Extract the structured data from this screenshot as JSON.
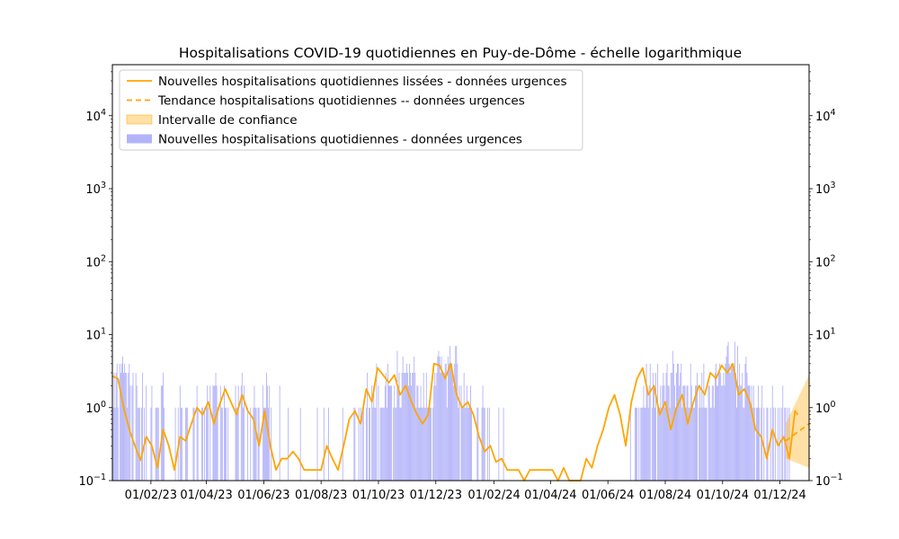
{
  "chart_data": {
    "type": "bar",
    "title": "Hospitalisations COVID-19 quotidiennes en Puy-de-Dôme - échelle logarithmique",
    "xlabel": "",
    "ylabel": "",
    "yscale": "log",
    "ylim": [
      0.1,
      50000
    ],
    "xlim": [
      "2022-12-22",
      "2025-01-01"
    ],
    "y_ticks": [
      {
        "value": 0.1,
        "base": "10",
        "exp": "−1"
      },
      {
        "value": 1,
        "base": "10",
        "exp": "0"
      },
      {
        "value": 10,
        "base": "10",
        "exp": "1"
      },
      {
        "value": 100,
        "base": "10",
        "exp": "2"
      },
      {
        "value": 1000,
        "base": "10",
        "exp": "3"
      },
      {
        "value": 10000,
        "base": "10",
        "exp": "4"
      }
    ],
    "x_ticks": [
      {
        "date": "2023-02-01",
        "label": "01/02/23"
      },
      {
        "date": "2023-04-01",
        "label": "01/04/23"
      },
      {
        "date": "2023-06-01",
        "label": "01/06/23"
      },
      {
        "date": "2023-08-01",
        "label": "01/08/23"
      },
      {
        "date": "2023-10-01",
        "label": "01/10/23"
      },
      {
        "date": "2023-12-01",
        "label": "01/12/23"
      },
      {
        "date": "2024-02-01",
        "label": "01/02/24"
      },
      {
        "date": "2024-04-01",
        "label": "01/04/24"
      },
      {
        "date": "2024-06-01",
        "label": "01/06/24"
      },
      {
        "date": "2024-08-01",
        "label": "01/08/24"
      },
      {
        "date": "2024-10-01",
        "label": "01/10/24"
      },
      {
        "date": "2024-12-01",
        "label": "01/12/24"
      }
    ],
    "grid": false,
    "legend_position": "top-left",
    "colors": {
      "smoothed": "#ffa500",
      "trend": "#ffa500",
      "confidence": "#ffa500",
      "bars": "#b3b3fa"
    },
    "legend": [
      {
        "label": "Nouvelles hospitalisations quotidiennes lissées - données urgences",
        "kind": "line"
      },
      {
        "label": "Tendance hospitalisations quotidiennes -- données urgences",
        "kind": "dashed"
      },
      {
        "label": "Intervalle de confiance",
        "kind": "fill"
      },
      {
        "label": "Nouvelles hospitalisations quotidiennes - données urgences",
        "kind": "bar"
      }
    ],
    "smoothed_series": {
      "name": "Nouvelles hospitalisations quotidiennes lissées - données urgences",
      "points": [
        [
          "2022-12-22",
          2.7
        ],
        [
          "2022-12-28",
          2.5
        ],
        [
          "2023-01-03",
          1.0
        ],
        [
          "2023-01-09",
          0.5
        ],
        [
          "2023-01-15",
          0.3
        ],
        [
          "2023-01-21",
          0.19
        ],
        [
          "2023-01-27",
          0.4
        ],
        [
          "2023-02-02",
          0.3
        ],
        [
          "2023-02-08",
          0.15
        ],
        [
          "2023-02-14",
          0.5
        ],
        [
          "2023-02-20",
          0.3
        ],
        [
          "2023-02-26",
          0.14
        ],
        [
          "2023-03-04",
          0.4
        ],
        [
          "2023-03-10",
          0.35
        ],
        [
          "2023-03-16",
          0.6
        ],
        [
          "2023-03-22",
          1.0
        ],
        [
          "2023-03-28",
          0.8
        ],
        [
          "2023-04-03",
          1.2
        ],
        [
          "2023-04-09",
          0.6
        ],
        [
          "2023-04-15",
          1.1
        ],
        [
          "2023-04-21",
          1.8
        ],
        [
          "2023-04-27",
          1.2
        ],
        [
          "2023-05-03",
          0.8
        ],
        [
          "2023-05-09",
          1.5
        ],
        [
          "2023-05-15",
          0.9
        ],
        [
          "2023-05-21",
          0.7
        ],
        [
          "2023-05-27",
          0.3
        ],
        [
          "2023-06-02",
          0.9
        ],
        [
          "2023-06-08",
          0.3
        ],
        [
          "2023-06-14",
          0.14
        ],
        [
          "2023-06-20",
          0.2
        ],
        [
          "2023-06-26",
          0.2
        ],
        [
          "2023-07-02",
          0.25
        ],
        [
          "2023-07-08",
          0.2
        ],
        [
          "2023-07-14",
          0.14
        ],
        [
          "2023-07-20",
          0.14
        ],
        [
          "2023-07-26",
          0.14
        ],
        [
          "2023-08-01",
          0.14
        ],
        [
          "2023-08-07",
          0.3
        ],
        [
          "2023-08-13",
          0.2
        ],
        [
          "2023-08-19",
          0.14
        ],
        [
          "2023-08-25",
          0.3
        ],
        [
          "2023-08-31",
          0.7
        ],
        [
          "2023-09-06",
          0.9
        ],
        [
          "2023-09-12",
          0.6
        ],
        [
          "2023-09-18",
          1.8
        ],
        [
          "2023-09-24",
          1.2
        ],
        [
          "2023-09-30",
          3.5
        ],
        [
          "2023-10-06",
          2.8
        ],
        [
          "2023-10-12",
          2.2
        ],
        [
          "2023-10-18",
          2.8
        ],
        [
          "2023-10-24",
          1.5
        ],
        [
          "2023-10-30",
          2.0
        ],
        [
          "2023-11-05",
          1.2
        ],
        [
          "2023-11-11",
          0.8
        ],
        [
          "2023-11-17",
          0.6
        ],
        [
          "2023-11-23",
          0.8
        ],
        [
          "2023-11-29",
          4.0
        ],
        [
          "2023-12-05",
          3.8
        ],
        [
          "2023-12-11",
          2.5
        ],
        [
          "2023-12-17",
          4.0
        ],
        [
          "2023-12-23",
          1.5
        ],
        [
          "2023-12-29",
          1.0
        ],
        [
          "2024-01-04",
          1.2
        ],
        [
          "2024-01-10",
          0.8
        ],
        [
          "2024-01-16",
          0.4
        ],
        [
          "2024-01-22",
          0.25
        ],
        [
          "2024-01-28",
          0.3
        ],
        [
          "2024-02-03",
          0.18
        ],
        [
          "2024-02-09",
          0.2
        ],
        [
          "2024-02-15",
          0.14
        ],
        [
          "2024-02-21",
          0.14
        ],
        [
          "2024-02-27",
          0.14
        ],
        [
          "2024-03-04",
          0.1
        ],
        [
          "2024-03-10",
          0.14
        ],
        [
          "2024-03-16",
          0.14
        ],
        [
          "2024-03-22",
          0.14
        ],
        [
          "2024-03-28",
          0.14
        ],
        [
          "2024-04-03",
          0.14
        ],
        [
          "2024-04-09",
          0.1
        ],
        [
          "2024-04-15",
          0.15
        ],
        [
          "2024-04-21",
          0.1
        ],
        [
          "2024-04-27",
          0.1
        ],
        [
          "2024-05-03",
          0.1
        ],
        [
          "2024-05-09",
          0.2
        ],
        [
          "2024-05-15",
          0.15
        ],
        [
          "2024-05-21",
          0.3
        ],
        [
          "2024-05-27",
          0.5
        ],
        [
          "2024-06-02",
          1.0
        ],
        [
          "2024-06-08",
          1.5
        ],
        [
          "2024-06-14",
          0.8
        ],
        [
          "2024-06-20",
          0.3
        ],
        [
          "2024-06-26",
          1.2
        ],
        [
          "2024-07-02",
          2.5
        ],
        [
          "2024-07-08",
          3.5
        ],
        [
          "2024-07-14",
          1.5
        ],
        [
          "2024-07-20",
          2.0
        ],
        [
          "2024-07-26",
          0.8
        ],
        [
          "2024-08-01",
          1.2
        ],
        [
          "2024-08-07",
          0.5
        ],
        [
          "2024-08-13",
          1.0
        ],
        [
          "2024-08-19",
          1.5
        ],
        [
          "2024-08-25",
          0.6
        ],
        [
          "2024-08-31",
          1.2
        ],
        [
          "2024-09-06",
          2.0
        ],
        [
          "2024-09-12",
          1.5
        ],
        [
          "2024-09-18",
          3.0
        ],
        [
          "2024-09-24",
          2.5
        ],
        [
          "2024-09-30",
          3.8
        ],
        [
          "2024-10-06",
          3.0
        ],
        [
          "2024-10-12",
          4.0
        ],
        [
          "2024-10-18",
          1.5
        ],
        [
          "2024-10-24",
          1.8
        ],
        [
          "2024-10-30",
          1.2
        ],
        [
          "2024-11-05",
          0.5
        ],
        [
          "2024-11-11",
          0.4
        ],
        [
          "2024-11-17",
          0.2
        ],
        [
          "2024-11-23",
          0.5
        ],
        [
          "2024-11-29",
          0.3
        ],
        [
          "2024-12-05",
          0.4
        ],
        [
          "2024-12-11",
          0.2
        ],
        [
          "2024-12-17",
          0.9
        ],
        [
          "2024-12-20",
          0.8
        ]
      ]
    },
    "trend": {
      "name": "Tendance hospitalisations quotidiennes -- données urgences",
      "start": [
        "2024-12-07",
        0.35
      ],
      "end": [
        "2025-01-01",
        0.6
      ],
      "ci_low_start": 0.2,
      "ci_high_start": 0.6,
      "ci_low_end": 0.15,
      "ci_high_end": 2.8
    },
    "bar_series": {
      "name": "Nouvelles hospitalisations quotidiennes - données urgences",
      "date_start": "2022-12-22",
      "date_end": "2024-12-20",
      "values": [
        3,
        1,
        3,
        1,
        3,
        4,
        1,
        0,
        4,
        3,
        4,
        5,
        3,
        4,
        3,
        3,
        1,
        3,
        4,
        2,
        0,
        2,
        3,
        0,
        0,
        3,
        2,
        1,
        1,
        1,
        0,
        1,
        3,
        0,
        1,
        0,
        2,
        0,
        0,
        0,
        0,
        1,
        2,
        0,
        0,
        0,
        1,
        1,
        1,
        1,
        0,
        0,
        2,
        2,
        3,
        1,
        0,
        0,
        0,
        0,
        0,
        0,
        0,
        0,
        0,
        0,
        0,
        1,
        0,
        0,
        1,
        0,
        2,
        1,
        1,
        0,
        0,
        0,
        1,
        1,
        1,
        0,
        0,
        0,
        0,
        0,
        1,
        1,
        0,
        0,
        2,
        1,
        0,
        0,
        0,
        1,
        1,
        0,
        1,
        0,
        1,
        2,
        1,
        0,
        2,
        0,
        0,
        2,
        2,
        2,
        3,
        2,
        1,
        0,
        0,
        2,
        1,
        1,
        0,
        2,
        1,
        1,
        0,
        1,
        0,
        0,
        0,
        0,
        0,
        0,
        0,
        2,
        1,
        1,
        2,
        0,
        0,
        2,
        3,
        1,
        2,
        0,
        0,
        0,
        1,
        0,
        0,
        1,
        0,
        0,
        1,
        2,
        1,
        1,
        0,
        1,
        1,
        0,
        0,
        0,
        2,
        1,
        1,
        1,
        3,
        2,
        1,
        2,
        0,
        1,
        0,
        0,
        0,
        0,
        0,
        0,
        0,
        0,
        2,
        0,
        0,
        0,
        0,
        0,
        0,
        0,
        0,
        1,
        0,
        0,
        0,
        0,
        0,
        0,
        0,
        0,
        0,
        0,
        0,
        0,
        1,
        0,
        0,
        0,
        0,
        0,
        0,
        0,
        0,
        0,
        0,
        0,
        0,
        0,
        0,
        0,
        0,
        0,
        1,
        0,
        0,
        0,
        0,
        0,
        0,
        1,
        0,
        0,
        0,
        0,
        1,
        0,
        0,
        0,
        0,
        0,
        0,
        0,
        0,
        0,
        0,
        0,
        0,
        0,
        0,
        1,
        0,
        0,
        0,
        0,
        0,
        0,
        0,
        0,
        0,
        0,
        0,
        1,
        1,
        0,
        0,
        0,
        1,
        0,
        1,
        0,
        1,
        1,
        0,
        0,
        1,
        3,
        0,
        1,
        1,
        0,
        2,
        1,
        2,
        1,
        1,
        4,
        0,
        2,
        0,
        1,
        1,
        1,
        1,
        1,
        2,
        3,
        1,
        4,
        2,
        2,
        2,
        2,
        0,
        1,
        2,
        1,
        1,
        6,
        2,
        3,
        1,
        1,
        3,
        5,
        3,
        3,
        3,
        4,
        3,
        2,
        4,
        3,
        2,
        3,
        3,
        5,
        3,
        1,
        2,
        2,
        1,
        1,
        2,
        1,
        1,
        3,
        1,
        1,
        3,
        1,
        1,
        1,
        1,
        1,
        0,
        1,
        2,
        3,
        2,
        3,
        5,
        6,
        5,
        3,
        5,
        3,
        3,
        3,
        4,
        4,
        1,
        5,
        4,
        7,
        4,
        4,
        3,
        2,
        4,
        7,
        7,
        4,
        1,
        2,
        0,
        2,
        1,
        1,
        3,
        1,
        1,
        2,
        1,
        1,
        1,
        2,
        1,
        0,
        0,
        0,
        0,
        0,
        1,
        1,
        0,
        0,
        0,
        1,
        2,
        1,
        1,
        0,
        0,
        1,
        0,
        1,
        0,
        0,
        0,
        0,
        0,
        0,
        0,
        0,
        0,
        1,
        0,
        0,
        0,
        0,
        1,
        0,
        0,
        0,
        0,
        0,
        0,
        0,
        0,
        0,
        0,
        0,
        0,
        0,
        0,
        0,
        0,
        0,
        0,
        0,
        0,
        0,
        0,
        0,
        0,
        0,
        0,
        0,
        0,
        0,
        0,
        0,
        0,
        0,
        0,
        0,
        0,
        0,
        0,
        0,
        0,
        0,
        0,
        0,
        0,
        0,
        0,
        0,
        0,
        0,
        0,
        0,
        0,
        0,
        0,
        0,
        0,
        0,
        0,
        0,
        0,
        0,
        0,
        0,
        0,
        0,
        0,
        0,
        0,
        0,
        0,
        0,
        0,
        0,
        0,
        0,
        0,
        0,
        0,
        0,
        0,
        0,
        0,
        0,
        0,
        0,
        0,
        0,
        0,
        0,
        0,
        0,
        0,
        0,
        0,
        0,
        0,
        0,
        0,
        0,
        0,
        0,
        0,
        0,
        0,
        0,
        0,
        0,
        0,
        0,
        0,
        0,
        0,
        0,
        0,
        0,
        0,
        0,
        0,
        0,
        0,
        0,
        0,
        0,
        0,
        0,
        0,
        0,
        0,
        0,
        0,
        0,
        0,
        0,
        0,
        1,
        0,
        0,
        0,
        0,
        1,
        1,
        1,
        0,
        1,
        0,
        1,
        1,
        1,
        2,
        1,
        1,
        4,
        2,
        1,
        2,
        4,
        0,
        1,
        3,
        2,
        1,
        3,
        0,
        4,
        1,
        1,
        2,
        1,
        2,
        3,
        2,
        1,
        3,
        4,
        2,
        2,
        1,
        3,
        3,
        6,
        4,
        2,
        1,
        3,
        4,
        4,
        2,
        3,
        4,
        1,
        2,
        2,
        2,
        1,
        2,
        2,
        1,
        1,
        4,
        2,
        1,
        1,
        1,
        2,
        2,
        3,
        0,
        1,
        2,
        1,
        3,
        1,
        4,
        1,
        1,
        1,
        0,
        2,
        2,
        1,
        1,
        2,
        2,
        1,
        3,
        4,
        2,
        2,
        3,
        4,
        3,
        2,
        2,
        3,
        2,
        4,
        5,
        7,
        8,
        4,
        3,
        4,
        4,
        4,
        3,
        8,
        3,
        1,
        7,
        2,
        4,
        2,
        2,
        3,
        1,
        1,
        4,
        5,
        3,
        2,
        2,
        2,
        1,
        2,
        1,
        2,
        1,
        0,
        1,
        1,
        2,
        1,
        0,
        1,
        2,
        0,
        1,
        0,
        0,
        1,
        1,
        0,
        0,
        1,
        0,
        2,
        1,
        0,
        1,
        0,
        0,
        1,
        0,
        1,
        0,
        1,
        2,
        0,
        1,
        1,
        0,
        1,
        0,
        1
      ]
    }
  }
}
